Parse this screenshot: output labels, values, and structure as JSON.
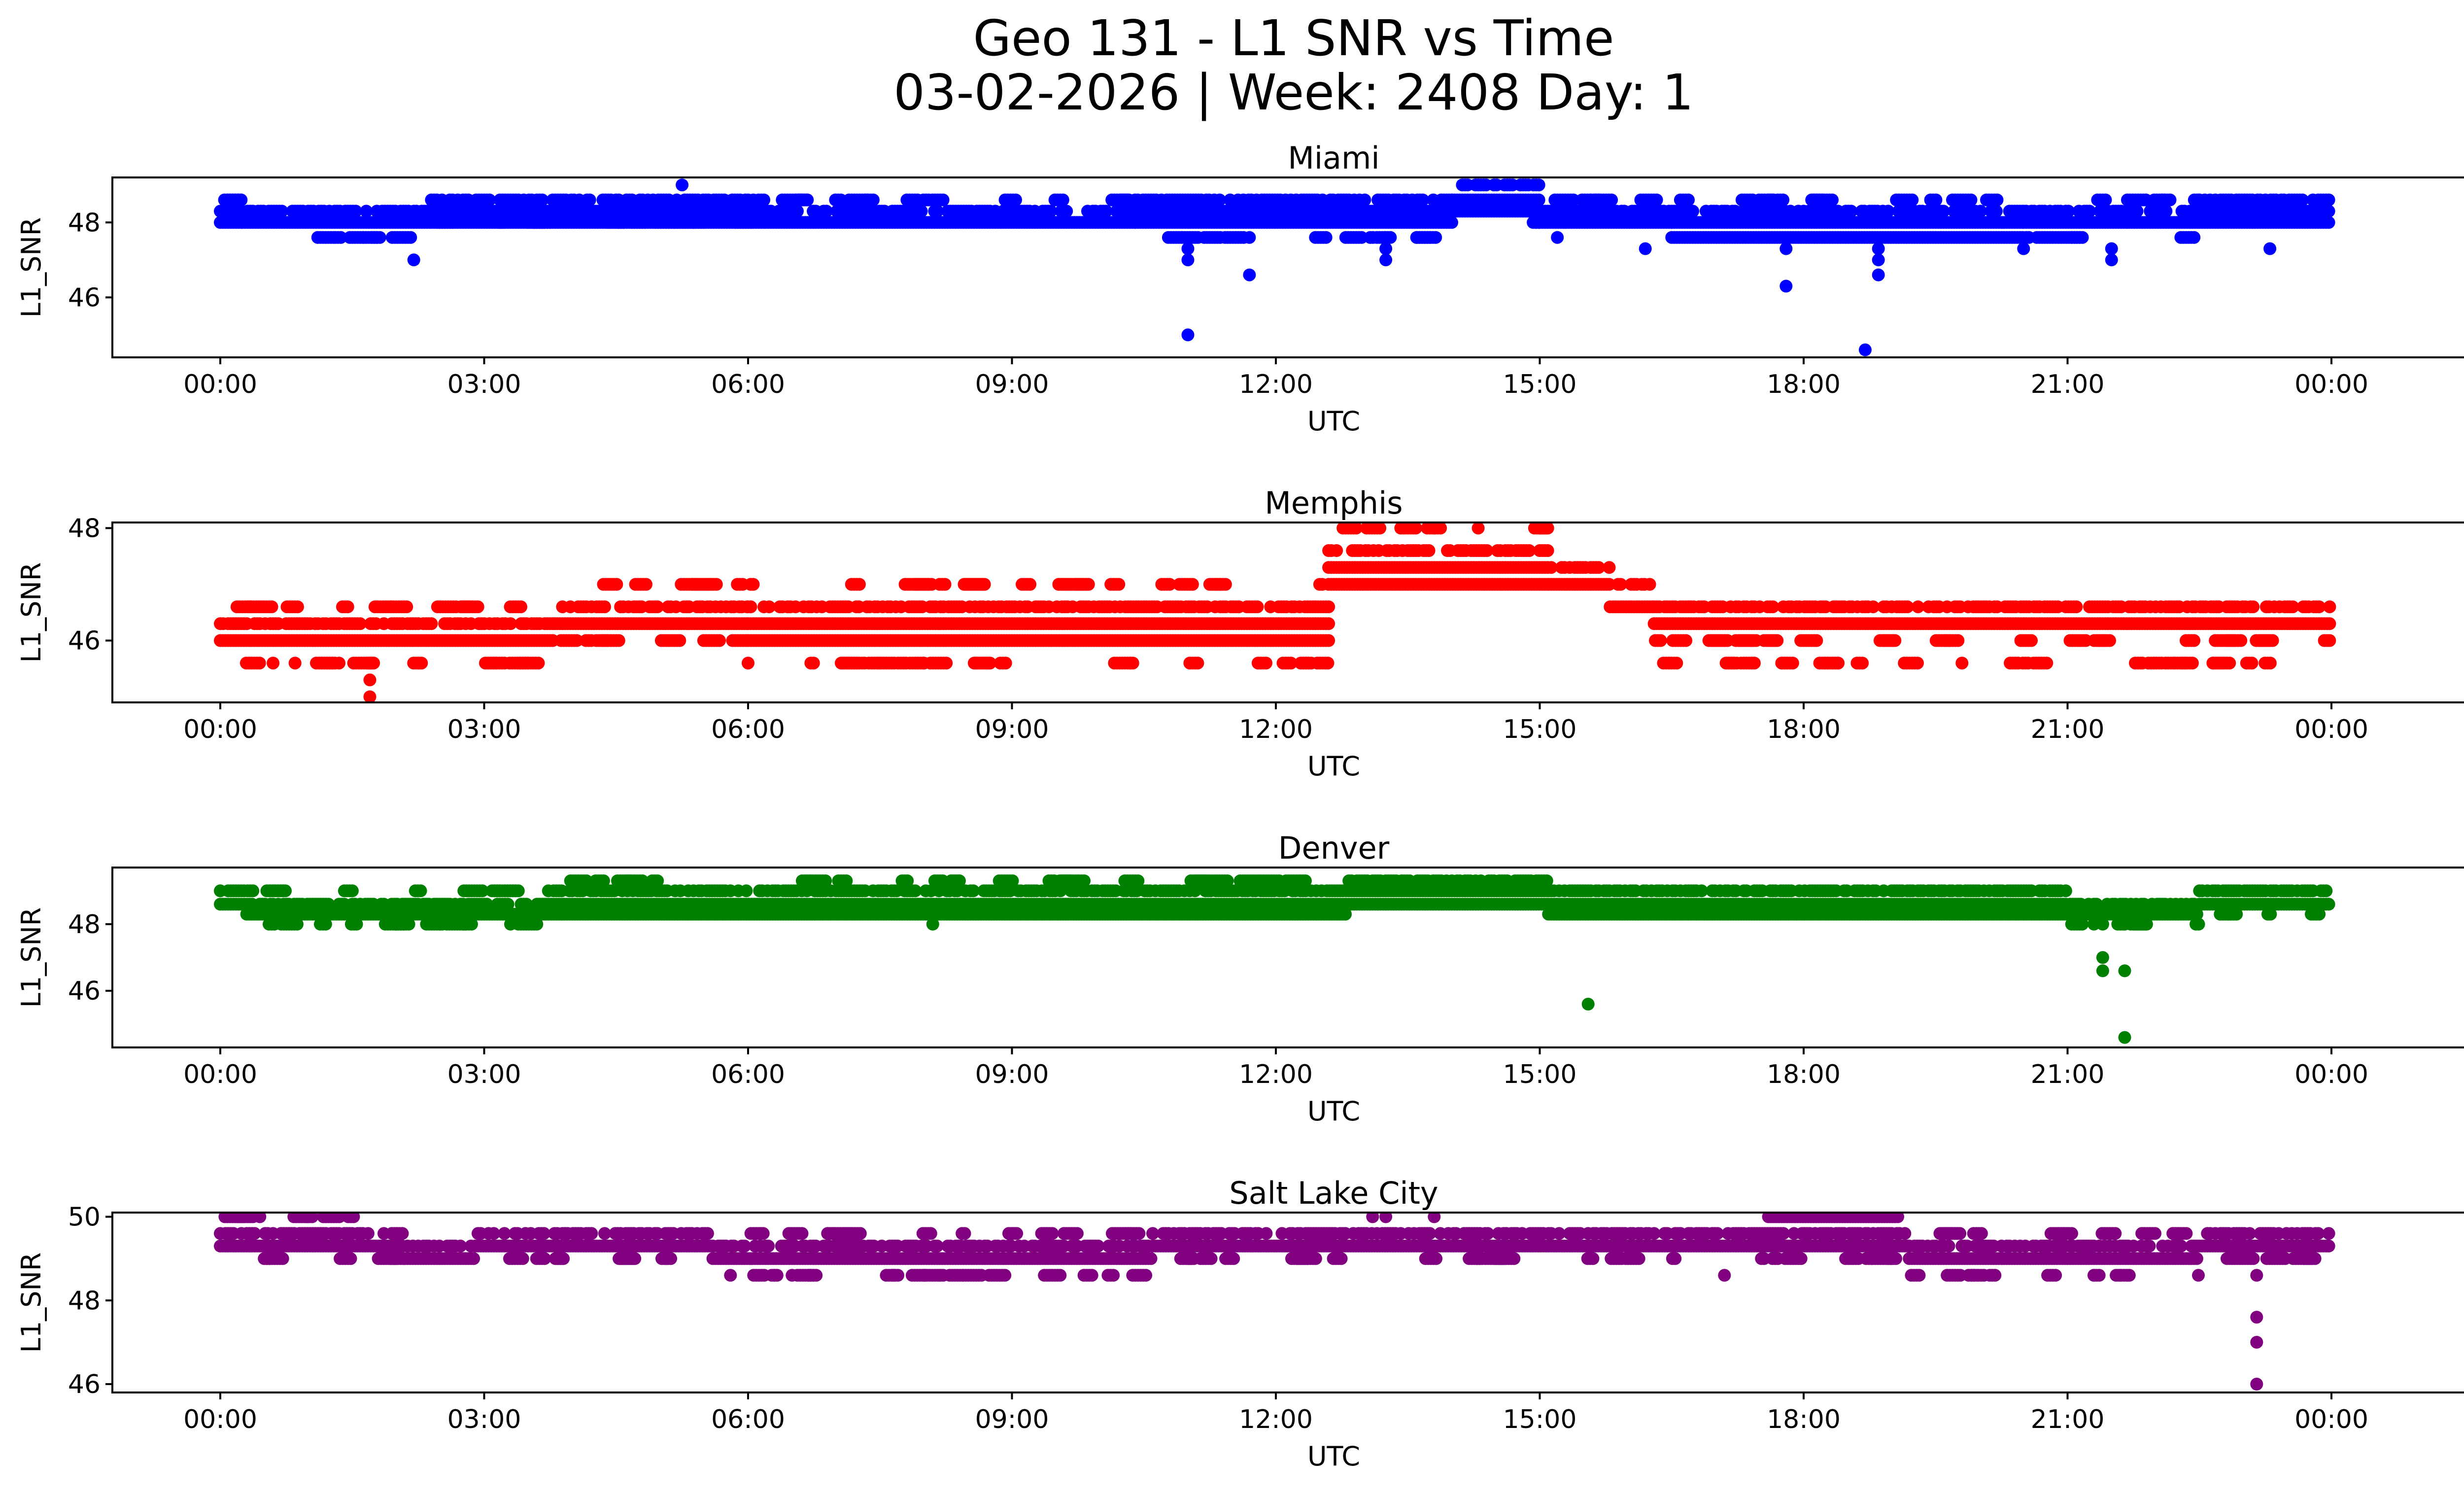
{
  "figure": {
    "title_line1": "Geo 131 - L1 SNR vs Time",
    "title_line2": "03-02-2026 | Week: 2408 Day: 1"
  },
  "chart_data": [
    {
      "type": "scatter",
      "title": "Miami",
      "xlabel": "UTC",
      "ylabel": "L1_SNR",
      "color": "#0000ff",
      "xlim": [
        -0.2,
        25
      ],
      "xticks": [
        "00:00",
        "03:00",
        "06:00",
        "09:00",
        "12:00",
        "15:00",
        "18:00",
        "21:00",
        "00:00"
      ],
      "ylim": [
        44.4,
        49.2
      ],
      "yticks": [
        46,
        48
      ],
      "bands": [
        {
          "x0": 0.0,
          "x1": 0.25,
          "levels": [
            48.0,
            48.3
          ],
          "sparse": [
            48.6
          ]
        },
        {
          "x0": 0.25,
          "x1": 2.4,
          "levels": [
            48.0,
            48.3
          ],
          "sparse": [
            47.6
          ]
        },
        {
          "x0": 2.4,
          "x1": 6.2,
          "levels": [
            48.0,
            48.3,
            48.6
          ],
          "sparse": [
            48.0
          ]
        },
        {
          "x0": 6.2,
          "x1": 10.4,
          "levels": [
            48.0,
            48.3
          ],
          "sparse": [
            48.6
          ]
        },
        {
          "x0": 10.4,
          "x1": 14.0,
          "levels": [
            48.0,
            48.3,
            48.6
          ],
          "sparse": [
            47.6
          ]
        },
        {
          "x0": 14.0,
          "x1": 15.0,
          "levels": [
            48.3,
            48.6,
            49.0
          ],
          "sparse": [
            48.0
          ]
        },
        {
          "x0": 15.0,
          "x1": 16.5,
          "levels": [
            48.0,
            48.3
          ],
          "sparse": [
            48.6
          ]
        },
        {
          "x0": 16.5,
          "x1": 20.5,
          "levels": [
            47.6,
            48.0,
            48.3
          ],
          "sparse": [
            48.6
          ]
        },
        {
          "x0": 20.5,
          "x1": 22.5,
          "levels": [
            48.0,
            48.3
          ],
          "sparse": [
            47.6,
            48.6
          ]
        },
        {
          "x0": 22.5,
          "x1": 24.0,
          "levels": [
            48.0,
            48.3,
            48.6
          ],
          "sparse": []
        }
      ],
      "outliers": [
        [
          2.2,
          47.0
        ],
        [
          5.25,
          49.0
        ],
        [
          11.0,
          45.0
        ],
        [
          11.0,
          47.0
        ],
        [
          11.0,
          47.3
        ],
        [
          11.7,
          46.6
        ],
        [
          11.7,
          47.6
        ],
        [
          13.25,
          47.0
        ],
        [
          13.25,
          47.3
        ],
        [
          17.8,
          46.3
        ],
        [
          17.8,
          47.3
        ],
        [
          18.7,
          44.6
        ],
        [
          18.85,
          46.6
        ],
        [
          18.85,
          47.0
        ],
        [
          18.85,
          47.3
        ],
        [
          20.5,
          47.3
        ],
        [
          21.5,
          47.0
        ],
        [
          21.5,
          47.3
        ],
        [
          23.3,
          47.3
        ],
        [
          15.2,
          47.6
        ],
        [
          16.2,
          47.3
        ]
      ]
    },
    {
      "type": "scatter",
      "title": "Memphis",
      "xlabel": "UTC",
      "ylabel": "L1_SNR",
      "color": "#ff0000",
      "xlim": [
        -0.2,
        25
      ],
      "xticks": [
        "00:00",
        "03:00",
        "06:00",
        "09:00",
        "12:00",
        "15:00",
        "18:00",
        "21:00",
        "00:00"
      ],
      "ylim": [
        44.9,
        48.1
      ],
      "yticks": [
        46,
        48
      ],
      "bands": [
        {
          "x0": 0.0,
          "x1": 3.8,
          "levels": [
            46.0,
            46.3
          ],
          "sparse": [
            46.6,
            45.6
          ]
        },
        {
          "x0": 3.8,
          "x1": 6.0,
          "levels": [
            46.3,
            46.6
          ],
          "sparse": [
            47.0,
            46.0
          ]
        },
        {
          "x0": 6.0,
          "x1": 12.6,
          "levels": [
            46.0,
            46.3,
            46.6
          ],
          "sparse": [
            47.0,
            45.6
          ]
        },
        {
          "x0": 12.6,
          "x1": 15.1,
          "levels": [
            47.0,
            47.3,
            47.6
          ],
          "sparse": [
            48.0
          ]
        },
        {
          "x0": 15.1,
          "x1": 15.8,
          "levels": [
            47.0,
            47.3
          ],
          "sparse": []
        },
        {
          "x0": 15.8,
          "x1": 16.3,
          "levels": [
            46.6,
            47.0
          ],
          "sparse": []
        },
        {
          "x0": 16.3,
          "x1": 24.0,
          "levels": [
            46.3,
            46.6
          ],
          "sparse": [
            46.0,
            45.6
          ]
        }
      ],
      "outliers": [
        [
          1.7,
          45.0
        ],
        [
          1.7,
          45.3
        ],
        [
          1.7,
          45.6
        ],
        [
          2.25,
          45.6
        ],
        [
          1.35,
          45.6
        ],
        [
          0.85,
          45.6
        ],
        [
          0.6,
          45.6
        ],
        [
          6.0,
          45.6
        ],
        [
          8.0,
          45.6
        ],
        [
          10.35,
          45.6
        ],
        [
          19.8,
          45.6
        ],
        [
          21.85,
          45.6
        ],
        [
          13.8,
          48.0
        ],
        [
          14.3,
          48.0
        ],
        [
          15.0,
          48.0
        ]
      ]
    },
    {
      "type": "scatter",
      "title": "Denver",
      "xlabel": "UTC",
      "ylabel": "L1_SNR",
      "color": "#008000",
      "xlim": [
        -0.2,
        25
      ],
      "xticks": [
        "00:00",
        "03:00",
        "06:00",
        "09:00",
        "12:00",
        "15:00",
        "18:00",
        "21:00",
        "00:00"
      ],
      "ylim": [
        44.3,
        49.7
      ],
      "yticks": [
        46,
        48
      ],
      "bands": [
        {
          "x0": 0.0,
          "x1": 0.3,
          "levels": [
            48.6,
            49.0
          ],
          "sparse": []
        },
        {
          "x0": 0.3,
          "x1": 3.7,
          "levels": [
            48.3,
            48.6
          ],
          "sparse": [
            49.0,
            48.0
          ]
        },
        {
          "x0": 3.7,
          "x1": 12.8,
          "levels": [
            48.3,
            48.6,
            49.0
          ],
          "sparse": [
            49.3
          ]
        },
        {
          "x0": 12.8,
          "x1": 15.1,
          "levels": [
            48.6,
            49.0,
            49.3
          ],
          "sparse": []
        },
        {
          "x0": 15.1,
          "x1": 21.0,
          "levels": [
            48.3,
            48.6,
            49.0
          ],
          "sparse": []
        },
        {
          "x0": 21.0,
          "x1": 22.5,
          "levels": [
            48.3,
            48.6
          ],
          "sparse": [
            48.0
          ]
        },
        {
          "x0": 22.5,
          "x1": 24.0,
          "levels": [
            48.6,
            49.0
          ],
          "sparse": [
            48.3
          ]
        }
      ],
      "outliers": [
        [
          2.0,
          48.0
        ],
        [
          2.5,
          48.0
        ],
        [
          3.3,
          48.0
        ],
        [
          8.1,
          48.0
        ],
        [
          15.55,
          45.6
        ],
        [
          21.4,
          46.6
        ],
        [
          21.4,
          47.0
        ],
        [
          21.4,
          48.0
        ],
        [
          21.65,
          44.6
        ],
        [
          21.65,
          46.6
        ],
        [
          21.65,
          48.0
        ],
        [
          21.3,
          48.0
        ]
      ]
    },
    {
      "type": "scatter",
      "title": "Salt Lake City",
      "xlabel": "UTC",
      "ylabel": "L1_SNR",
      "color": "#800080",
      "xlim": [
        -0.2,
        25
      ],
      "xticks": [
        "00:00",
        "03:00",
        "06:00",
        "09:00",
        "12:00",
        "15:00",
        "18:00",
        "21:00",
        "00:00"
      ],
      "ylim": [
        45.8,
        50.1
      ],
      "yticks": [
        46,
        48,
        50
      ],
      "bands": [
        {
          "x0": 0.0,
          "x1": 2.1,
          "levels": [
            49.3,
            49.6
          ],
          "sparse": [
            50.0,
            49.0
          ]
        },
        {
          "x0": 2.1,
          "x1": 2.9,
          "levels": [
            49.0,
            49.3
          ],
          "sparse": []
        },
        {
          "x0": 2.9,
          "x1": 5.6,
          "levels": [
            49.3,
            49.6
          ],
          "sparse": [
            49.0
          ]
        },
        {
          "x0": 5.6,
          "x1": 10.6,
          "levels": [
            49.0,
            49.3
          ],
          "sparse": [
            49.6,
            48.6
          ]
        },
        {
          "x0": 10.6,
          "x1": 19.2,
          "levels": [
            49.3,
            49.6
          ],
          "sparse": [
            49.0
          ]
        },
        {
          "x0": 17.6,
          "x1": 19.1,
          "levels": [
            50.0
          ],
          "sparse": []
        },
        {
          "x0": 19.2,
          "x1": 22.5,
          "levels": [
            49.0,
            49.3
          ],
          "sparse": [
            49.6,
            48.6
          ]
        },
        {
          "x0": 22.5,
          "x1": 24.0,
          "levels": [
            49.3,
            49.6
          ],
          "sparse": [
            49.0
          ]
        }
      ],
      "outliers": [
        [
          0.2,
          50.0
        ],
        [
          0.45,
          50.0
        ],
        [
          1.0,
          50.0
        ],
        [
          13.1,
          50.0
        ],
        [
          13.25,
          50.0
        ],
        [
          13.8,
          50.0
        ],
        [
          17.1,
          48.6
        ],
        [
          23.15,
          46.0
        ],
        [
          23.15,
          47.0
        ],
        [
          23.15,
          47.6
        ],
        [
          23.15,
          48.6
        ],
        [
          5.8,
          48.6
        ],
        [
          6.3,
          48.6
        ],
        [
          6.5,
          48.6
        ],
        [
          6.7,
          48.6
        ],
        [
          8.0,
          48.6
        ],
        [
          21.3,
          48.6
        ],
        [
          21.6,
          48.6
        ]
      ]
    }
  ]
}
